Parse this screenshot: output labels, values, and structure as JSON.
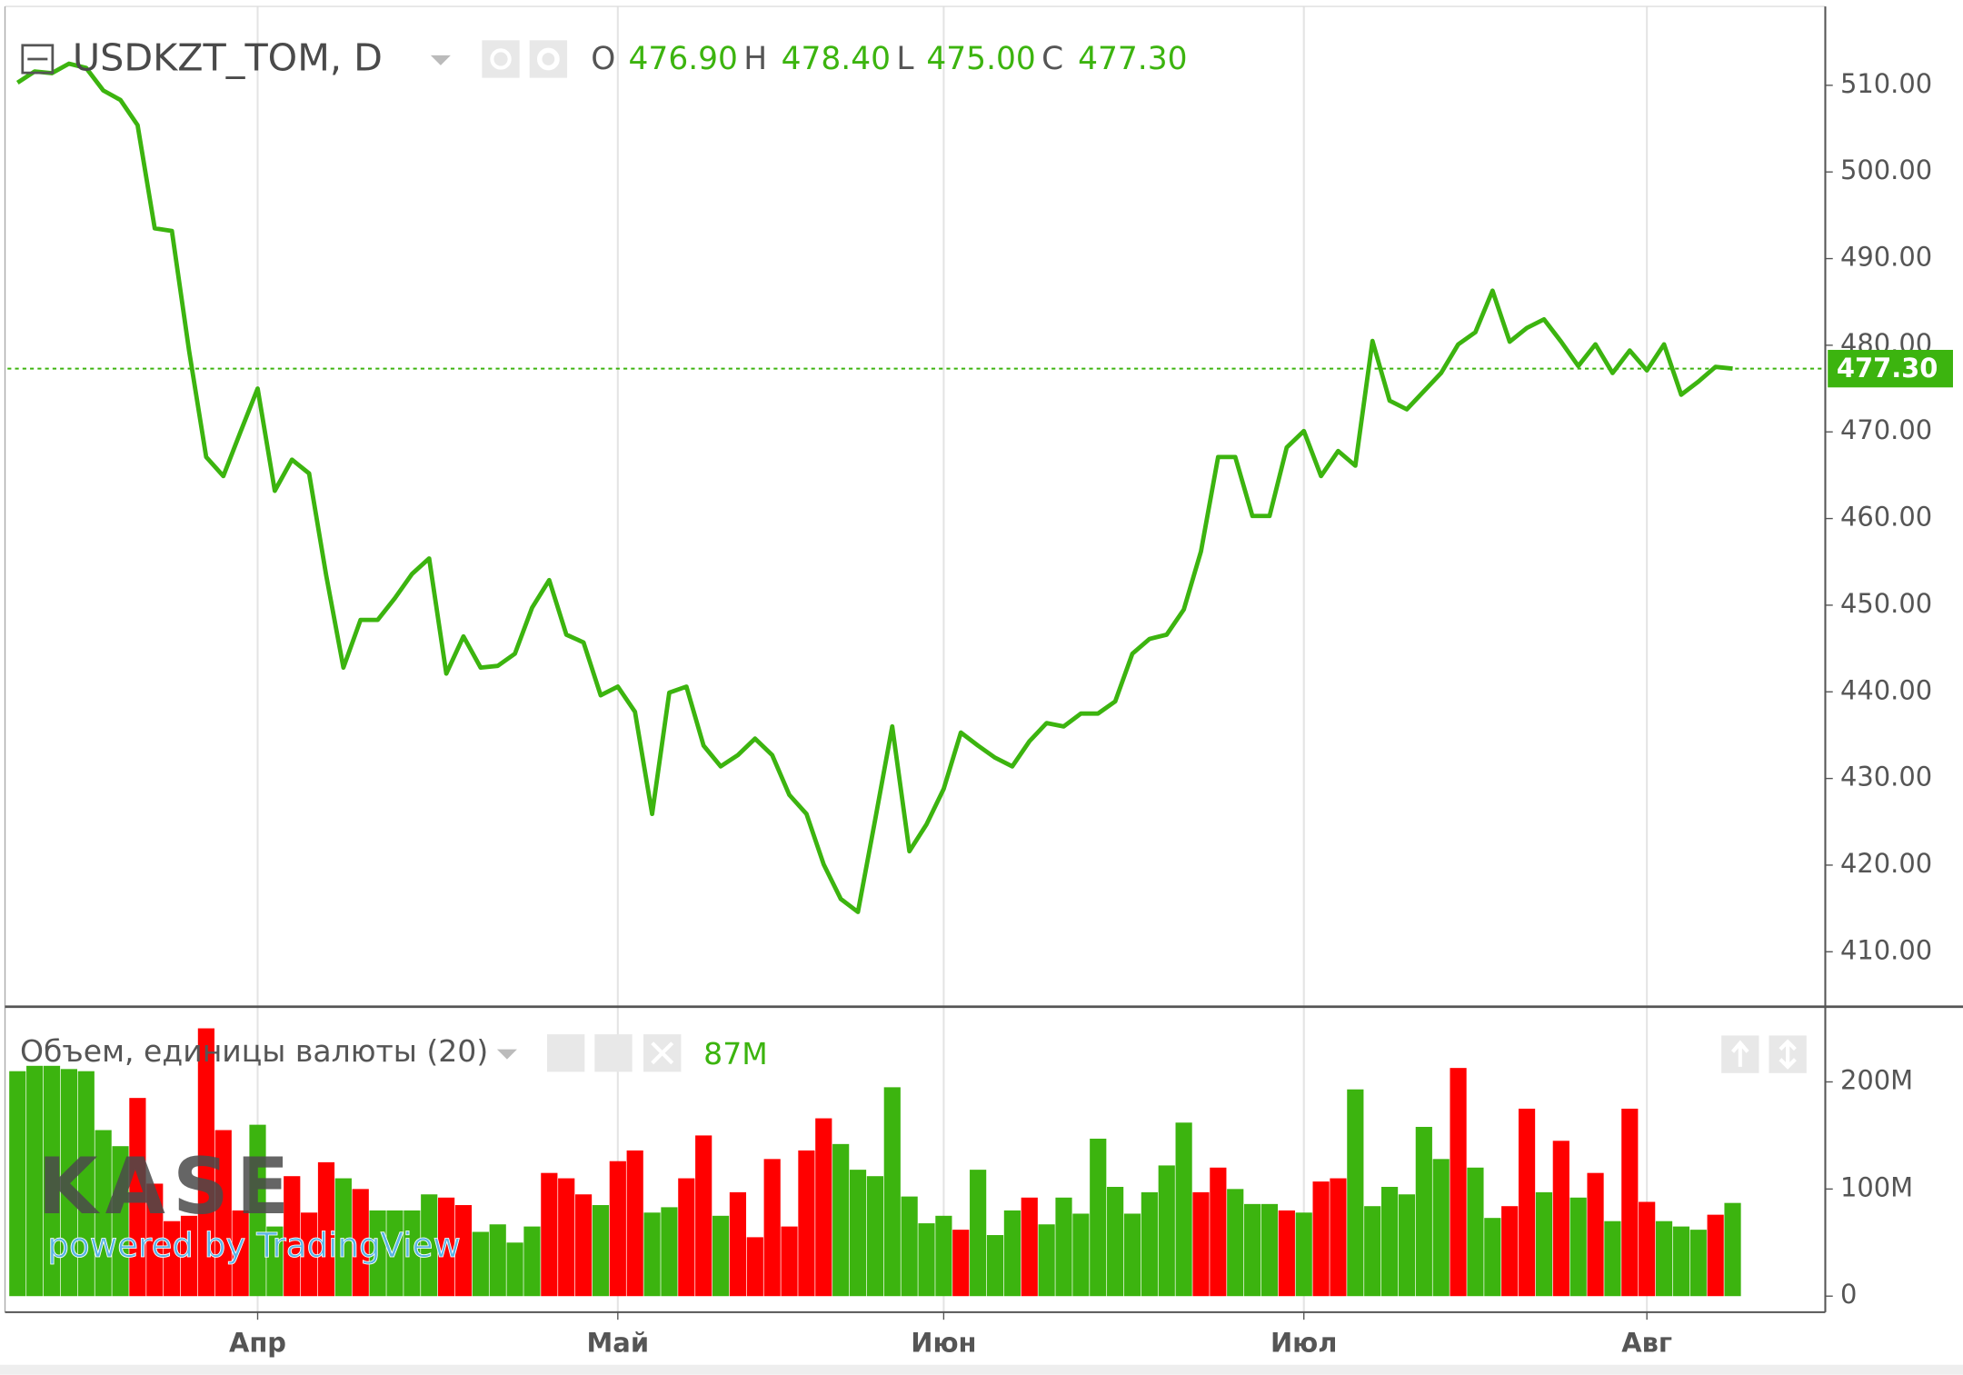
{
  "chart_data": [
    {
      "type": "line",
      "title": "USDKZT_TOM, D",
      "ohlc": [
        {
          "name": "O",
          "value": 476.9,
          "label": "476.90"
        },
        {
          "name": "H",
          "value": 478.4,
          "label": "478.40"
        },
        {
          "name": "L",
          "value": 475.0,
          "label": "475.00"
        },
        {
          "name": "C",
          "value": 477.3,
          "label": "477.30"
        }
      ],
      "categories": [
        null,
        null,
        null,
        null,
        null,
        null,
        null,
        null,
        null,
        null,
        null,
        null,
        null,
        null,
        "Апр",
        null,
        null,
        null,
        null,
        null,
        null,
        null,
        null,
        null,
        null,
        null,
        null,
        null,
        null,
        null,
        null,
        null,
        null,
        null,
        null,
        "Май",
        null,
        null,
        null,
        null,
        null,
        null,
        null,
        null,
        null,
        null,
        null,
        null,
        null,
        null,
        null,
        null,
        null,
        null,
        "Июн",
        null,
        null,
        null,
        null,
        null,
        null,
        null,
        null,
        null,
        null,
        null,
        null,
        null,
        null,
        null,
        null,
        null,
        null,
        null,
        null,
        "Июл",
        null,
        null,
        null,
        null,
        null,
        null,
        null,
        null,
        null,
        null,
        null,
        null,
        null,
        null,
        null,
        null,
        null,
        null,
        null,
        "Авг",
        null,
        null,
        null,
        null,
        null
      ],
      "values": [
        510.3,
        511.6,
        511.4,
        512.5,
        512.0,
        509.4,
        508.3,
        505.4,
        493.5,
        493.2,
        479.4,
        467.1,
        464.9,
        470.0,
        475.0,
        463.2,
        466.8,
        465.2,
        453.4,
        442.8,
        448.3,
        448.3,
        450.8,
        453.6,
        455.4,
        442.1,
        446.4,
        442.8,
        443.0,
        444.4,
        449.7,
        452.9,
        446.6,
        445.7,
        439.6,
        440.6,
        437.7,
        425.9,
        439.9,
        440.6,
        433.8,
        431.4,
        432.7,
        434.6,
        432.7,
        428.1,
        425.9,
        420.1,
        416.1,
        414.6,
        425.2,
        436.0,
        421.6,
        424.7,
        428.8,
        435.3,
        433.8,
        432.4,
        431.4,
        434.3,
        436.4,
        436.0,
        437.5,
        437.5,
        438.9,
        444.4,
        446.1,
        446.6,
        449.5,
        456.2,
        467.1,
        467.1,
        460.3,
        460.3,
        468.2,
        470.1,
        464.9,
        467.8,
        466.1,
        480.5,
        473.6,
        472.6,
        474.7,
        476.8,
        480.1,
        481.5,
        486.3,
        480.4,
        482.0,
        483.0,
        480.4,
        477.6,
        480.1,
        476.8,
        479.4,
        477.1,
        480.1,
        474.3,
        475.8,
        477.5,
        477.3
      ],
      "color": "#3cb40f",
      "last_price": {
        "value": 477.3,
        "label": "477.30"
      },
      "ylim": [
        403.8,
        519.1
      ],
      "yticks": [
        {
          "value": 410,
          "label": "410.00"
        },
        {
          "value": 420,
          "label": "420.00"
        },
        {
          "value": 430,
          "label": "430.00"
        },
        {
          "value": 440,
          "label": "440.00"
        },
        {
          "value": 450,
          "label": "450.00"
        },
        {
          "value": 460,
          "label": "460.00"
        },
        {
          "value": 470,
          "label": "470.00"
        },
        {
          "value": 480,
          "label": "480.00"
        },
        {
          "value": 490,
          "label": "490.00"
        },
        {
          "value": 500,
          "label": "500.00"
        },
        {
          "value": 510,
          "label": "510.00"
        }
      ],
      "grid": true
    },
    {
      "type": "bar",
      "title": "Объем, единицы валюты (20)",
      "last_value": {
        "value": 87000000,
        "label": "87M"
      },
      "values": [
        210000000,
        215000000,
        215000000,
        212000000,
        210000000,
        155000000,
        140000000,
        185000000,
        105000000,
        70000000,
        75000000,
        250000000,
        155000000,
        80000000,
        160000000,
        65000000,
        112000000,
        78000000,
        125000000,
        110000000,
        100000000,
        80000000,
        80000000,
        80000000,
        95000000,
        92000000,
        85000000,
        60000000,
        67000000,
        50000000,
        65000000,
        115000000,
        110000000,
        95000000,
        85000000,
        126000000,
        136000000,
        78000000,
        83000000,
        110000000,
        150000000,
        75000000,
        97000000,
        55000000,
        128000000,
        65000000,
        136000000,
        166000000,
        142000000,
        118000000,
        112000000,
        195000000,
        93000000,
        68000000,
        75000000,
        62000000,
        118000000,
        57000000,
        80000000,
        92000000,
        67000000,
        92000000,
        77000000,
        147000000,
        102000000,
        77000000,
        97000000,
        122000000,
        162000000,
        97000000,
        120000000,
        100000000,
        86000000,
        86000000,
        80000000,
        78000000,
        107000000,
        110000000,
        193000000,
        84000000,
        102000000,
        95000000,
        158000000,
        128000000,
        213000000,
        120000000,
        73000000,
        84000000,
        175000000,
        97000000,
        145000000,
        92000000,
        115000000,
        70000000,
        175000000,
        88000000,
        70000000,
        65000000,
        62000000,
        76000000,
        87000000
      ],
      "colors": [
        "#3cb40f",
        "#3cb40f",
        "#3cb40f",
        "#3cb40f",
        "#3cb40f",
        "#3cb40f",
        "#3cb40f",
        "#ff0000",
        "#ff0000",
        "#ff0000",
        "#ff0000",
        "#ff0000",
        "#ff0000",
        "#ff0000",
        "#3cb40f",
        "#3cb40f",
        "#ff0000",
        "#ff0000",
        "#ff0000",
        "#3cb40f",
        "#ff0000",
        "#3cb40f",
        "#3cb40f",
        "#3cb40f",
        "#3cb40f",
        "#ff0000",
        "#ff0000",
        "#3cb40f",
        "#3cb40f",
        "#3cb40f",
        "#3cb40f",
        "#ff0000",
        "#ff0000",
        "#ff0000",
        "#3cb40f",
        "#ff0000",
        "#ff0000",
        "#3cb40f",
        "#3cb40f",
        "#ff0000",
        "#ff0000",
        "#3cb40f",
        "#ff0000",
        "#ff0000",
        "#ff0000",
        "#ff0000",
        "#ff0000",
        "#ff0000",
        "#3cb40f",
        "#3cb40f",
        "#3cb40f",
        "#3cb40f",
        "#3cb40f",
        "#3cb40f",
        "#3cb40f",
        "#ff0000",
        "#3cb40f",
        "#3cb40f",
        "#3cb40f",
        "#ff0000",
        "#3cb40f",
        "#3cb40f",
        "#3cb40f",
        "#3cb40f",
        "#3cb40f",
        "#3cb40f",
        "#3cb40f",
        "#3cb40f",
        "#3cb40f",
        "#ff0000",
        "#ff0000",
        "#3cb40f",
        "#3cb40f",
        "#3cb40f",
        "#ff0000",
        "#3cb40f",
        "#ff0000",
        "#ff0000",
        "#3cb40f",
        "#3cb40f",
        "#3cb40f",
        "#3cb40f",
        "#3cb40f",
        "#3cb40f",
        "#ff0000",
        "#3cb40f",
        "#3cb40f",
        "#ff0000",
        "#ff0000",
        "#3cb40f",
        "#ff0000",
        "#3cb40f",
        "#ff0000",
        "#3cb40f",
        "#ff0000",
        "#ff0000",
        "#3cb40f",
        "#3cb40f",
        "#3cb40f",
        "#ff0000",
        "#3cb40f"
      ],
      "ylim": [
        -15000000,
        269000000
      ],
      "yticks": [
        0,
        {
          "value": 100000000,
          "label": "100M"
        },
        {
          "value": 200000000,
          "label": "200M"
        }
      ]
    }
  ],
  "watermark": {
    "logo": "KASE",
    "text": "powered by TradingView"
  }
}
